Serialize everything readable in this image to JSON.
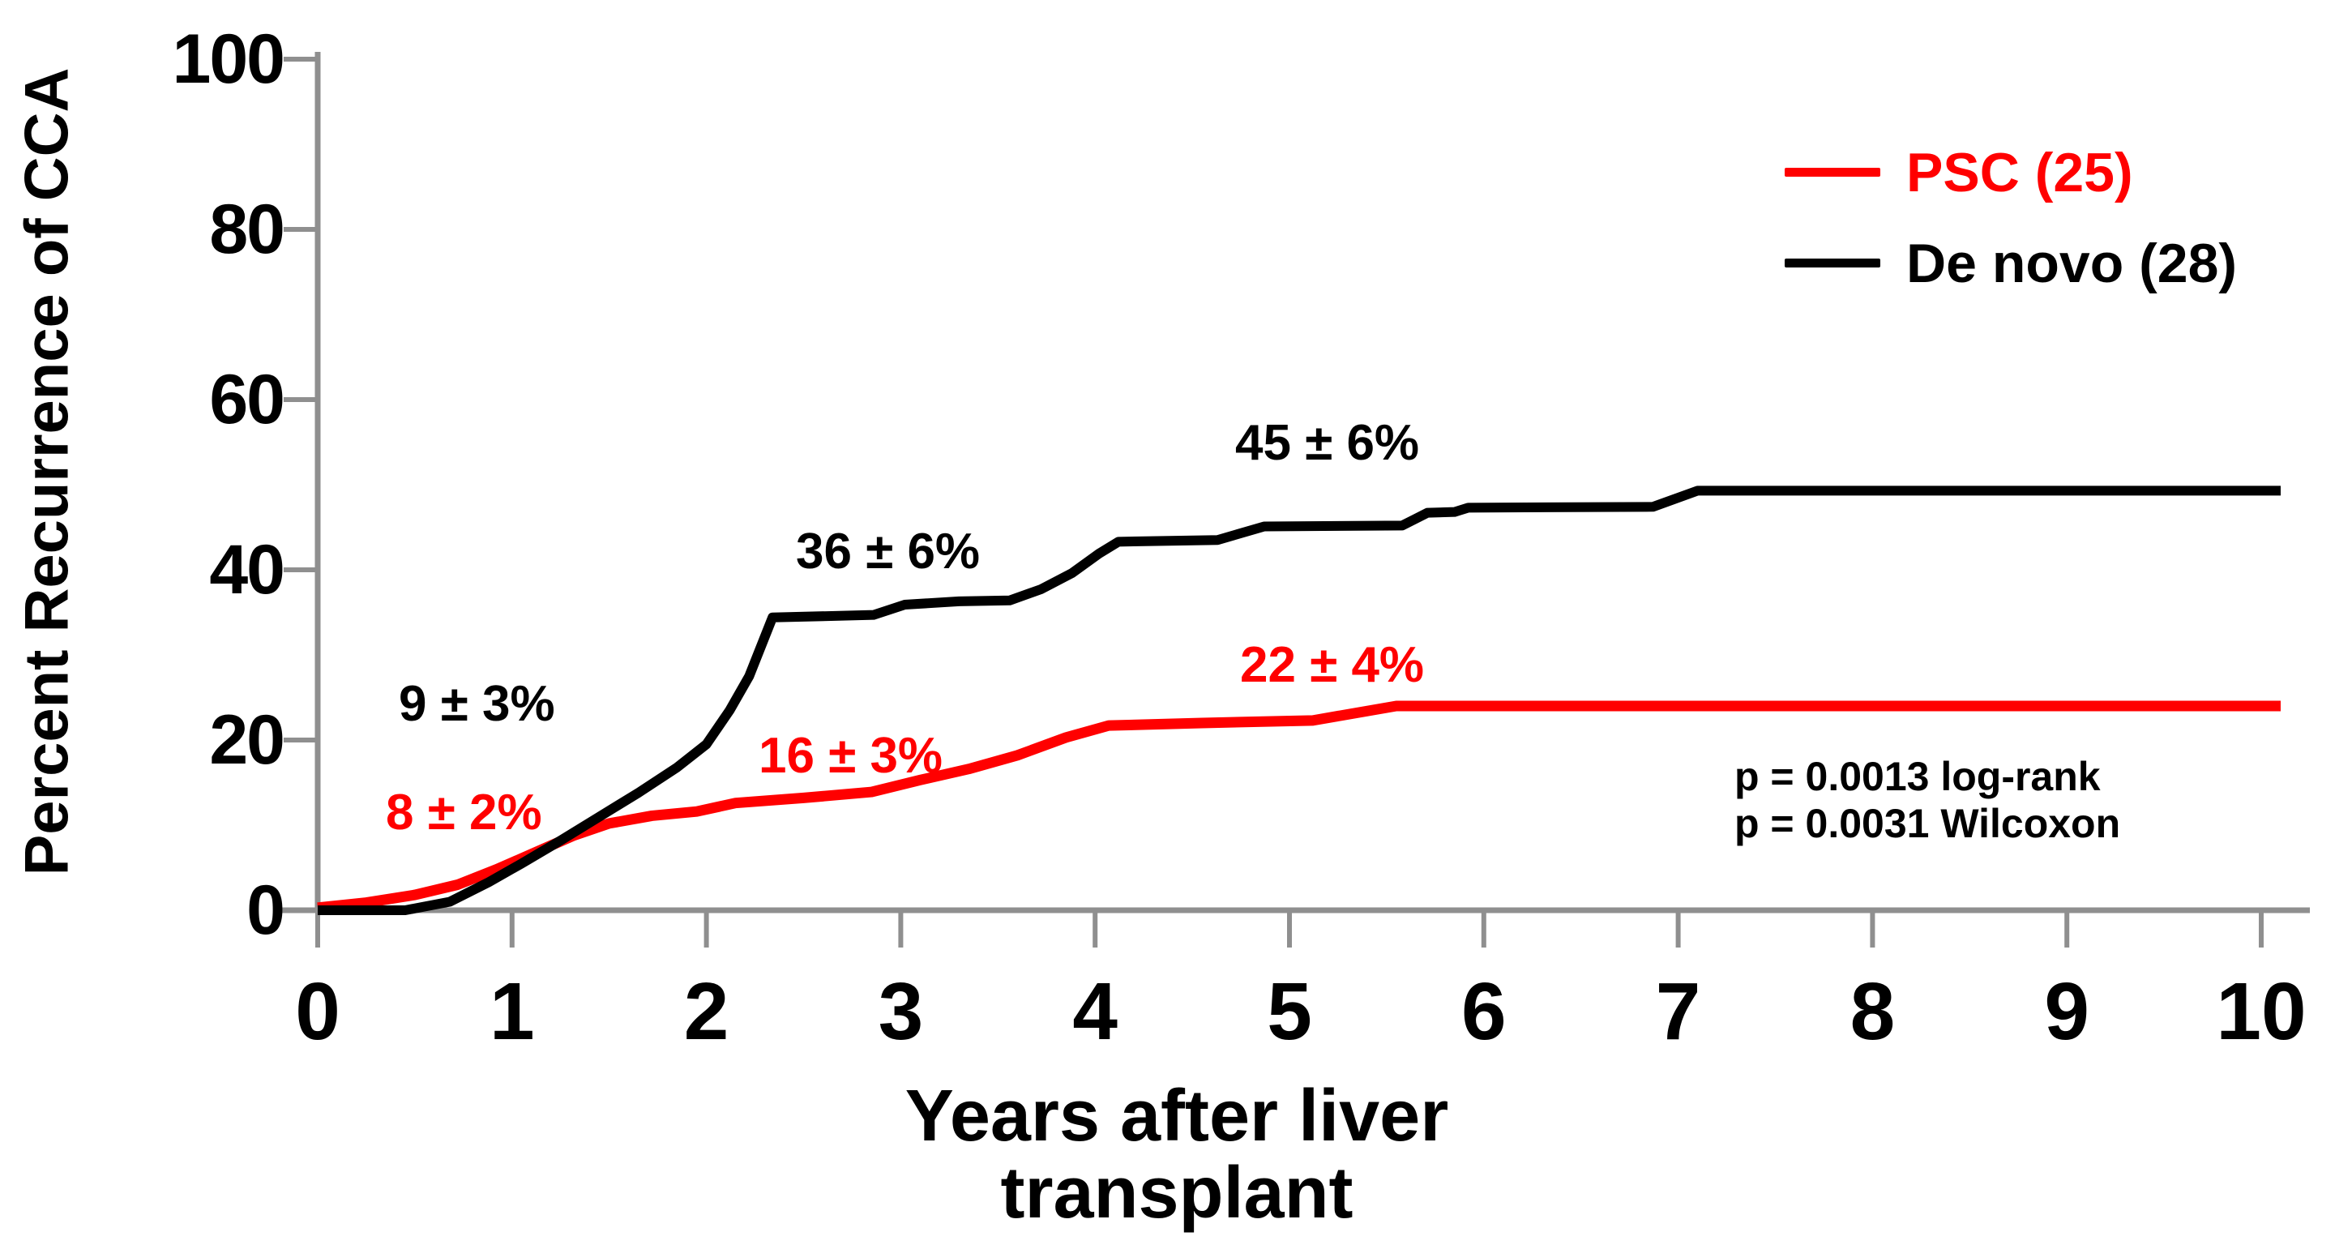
{
  "chart_data": {
    "type": "line",
    "title": "",
    "y_axis_title": "Percent Recurrence of CCA",
    "x_axis_title_lines": [
      "Years after liver",
      "transplant"
    ],
    "x_ticks": [
      0,
      1,
      2,
      3,
      4,
      5,
      6,
      7,
      8,
      9,
      10
    ],
    "y_ticks": [
      0,
      20,
      40,
      60,
      80,
      100
    ],
    "xlim": [
      0,
      10
    ],
    "ylim": [
      0,
      100
    ],
    "grid": false,
    "axis_color": "#8f8f8f",
    "legend_position": "top-right",
    "series": [
      {
        "name": "PSC (25)",
        "n": 25,
        "color": "#ff0000",
        "points": [
          [
            0,
            0.3
          ],
          [
            0.25,
            0.9
          ],
          [
            0.5,
            1.8
          ],
          [
            0.72,
            3.0
          ],
          [
            0.92,
            4.8
          ],
          [
            1.12,
            6.8
          ],
          [
            1.32,
            8.8
          ],
          [
            1.5,
            10.2
          ],
          [
            1.72,
            11.1
          ],
          [
            1.95,
            11.6
          ],
          [
            2.15,
            12.6
          ],
          [
            2.5,
            13.2
          ],
          [
            2.85,
            13.9
          ],
          [
            3.1,
            15.3
          ],
          [
            3.35,
            16.6
          ],
          [
            3.6,
            18.2
          ],
          [
            3.85,
            20.3
          ],
          [
            4.07,
            21.7
          ],
          [
            4.55,
            22.0
          ],
          [
            5.12,
            22.3
          ],
          [
            5.55,
            24.0
          ],
          [
            10.1,
            24.0
          ]
        ]
      },
      {
        "name": "De novo (28)",
        "n": 28,
        "color": "#000000",
        "points": [
          [
            0,
            0
          ],
          [
            0.45,
            0
          ],
          [
            0.68,
            1.0
          ],
          [
            0.88,
            3.3
          ],
          [
            1.05,
            5.5
          ],
          [
            1.25,
            8.2
          ],
          [
            1.45,
            11.0
          ],
          [
            1.65,
            13.8
          ],
          [
            1.85,
            16.8
          ],
          [
            2.0,
            19.5
          ],
          [
            2.12,
            23.5
          ],
          [
            2.22,
            27.5
          ],
          [
            2.34,
            34.4
          ],
          [
            2.86,
            34.7
          ],
          [
            3.02,
            35.9
          ],
          [
            3.3,
            36.3
          ],
          [
            3.56,
            36.4
          ],
          [
            3.72,
            37.7
          ],
          [
            3.88,
            39.6
          ],
          [
            4.02,
            41.9
          ],
          [
            4.12,
            43.3
          ],
          [
            4.63,
            43.5
          ],
          [
            4.87,
            45.1
          ],
          [
            5.58,
            45.2
          ],
          [
            5.71,
            46.7
          ],
          [
            5.85,
            46.8
          ],
          [
            5.92,
            47.3
          ],
          [
            6.87,
            47.4
          ],
          [
            7.1,
            49.3
          ],
          [
            10.1,
            49.3
          ]
        ]
      }
    ],
    "annotations": [
      {
        "text": "9 ± 3%",
        "color": "#000000",
        "series": "De novo (28)",
        "near_year": 1
      },
      {
        "text": "8 ± 2%",
        "color": "#ff0000",
        "series": "PSC (25)",
        "near_year": 1
      },
      {
        "text": "36 ± 6%",
        "color": "#000000",
        "series": "De novo (28)",
        "near_year": 3
      },
      {
        "text": "16 ± 3%",
        "color": "#ff0000",
        "series": "PSC (25)",
        "near_year": 3
      },
      {
        "text": "45 ± 6%",
        "color": "#000000",
        "series": "De novo (28)",
        "near_year": 5
      },
      {
        "text": "22 ± 4%",
        "color": "#ff0000",
        "series": "PSC (25)",
        "near_year": 5
      }
    ],
    "stats": {
      "log_rank": "p = 0.0013 log-rank",
      "wilcoxon": "p = 0.0031 Wilcoxon"
    }
  }
}
